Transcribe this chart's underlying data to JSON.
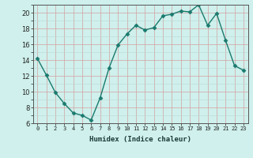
{
  "x": [
    0,
    1,
    2,
    3,
    4,
    5,
    6,
    7,
    8,
    9,
    10,
    11,
    12,
    13,
    14,
    15,
    16,
    17,
    18,
    19,
    20,
    21,
    22,
    23
  ],
  "y": [
    14.2,
    12.1,
    9.9,
    8.5,
    7.3,
    7.0,
    6.4,
    9.2,
    13.0,
    15.9,
    17.3,
    18.4,
    17.8,
    18.1,
    19.6,
    19.8,
    20.2,
    20.1,
    21.0,
    18.4,
    19.9,
    16.5,
    13.3,
    12.7
  ],
  "line_color": "#1a7a6e",
  "marker": "D",
  "marker_size": 2.5,
  "bg_color": "#cff0ec",
  "xlabel": "Humidex (Indice chaleur)",
  "ylim": [
    6,
    21
  ],
  "xlim": [
    -0.5,
    23.5
  ],
  "yticks": [
    6,
    8,
    10,
    12,
    14,
    16,
    18,
    20
  ],
  "xticks": [
    0,
    1,
    2,
    3,
    4,
    5,
    6,
    7,
    8,
    9,
    10,
    11,
    12,
    13,
    14,
    15,
    16,
    17,
    18,
    19,
    20,
    21,
    22,
    23
  ]
}
